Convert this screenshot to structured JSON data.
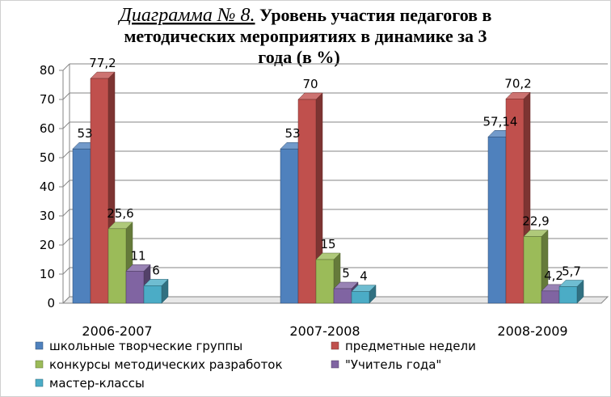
{
  "chart_data": {
    "type": "bar",
    "title_prefix": "Диаграмма № 8.",
    "title_lines": [
      "Уровень участия педагогов в",
      "методических мероприятиях в динамике за 3",
      "года (в %)"
    ],
    "categories": [
      "2006-2007",
      "2007-2008",
      "2008-2009"
    ],
    "series": [
      {
        "name": "школьные творческие группы",
        "values": [
          53,
          53,
          57.14
        ],
        "labels": [
          "53",
          "53",
          "57,14"
        ],
        "color": "#4f81bd"
      },
      {
        "name": "предметные недели",
        "values": [
          77.2,
          70,
          70.2
        ],
        "labels": [
          "77,2",
          "70",
          "70,2"
        ],
        "color": "#c0504d"
      },
      {
        "name": "конкурсы методических разработок",
        "values": [
          25.6,
          15,
          22.9
        ],
        "labels": [
          "25,6",
          "15",
          "22,9"
        ],
        "color": "#9bbb59"
      },
      {
        "name": "\"Учитель года\"",
        "values": [
          11,
          5,
          4.2
        ],
        "labels": [
          "11",
          "5",
          "4,2"
        ],
        "color": "#8064a2"
      },
      {
        "name": "мастер-классы",
        "values": [
          6,
          4,
          5.7
        ],
        "labels": [
          "6",
          "4",
          "5,7"
        ],
        "color": "#4bacc6"
      }
    ],
    "ylim": [
      0,
      80
    ],
    "yticks": [
      0,
      10,
      20,
      30,
      40,
      50,
      60,
      70,
      80
    ],
    "grid": true,
    "legend_position": "bottom"
  }
}
